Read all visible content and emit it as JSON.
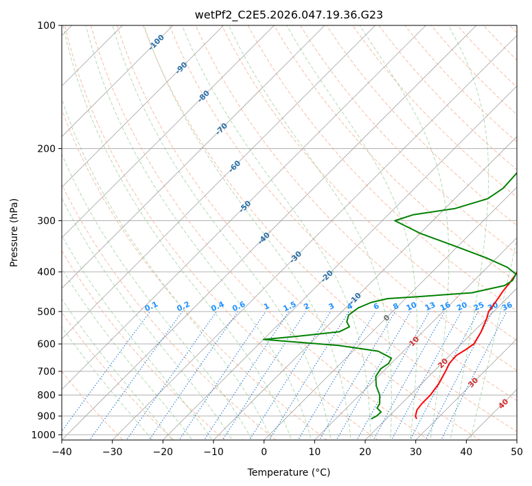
{
  "chart_data": {
    "type": "line",
    "title": "wetPf2_C2E5.2026.047.19.36.G23",
    "xlabel": "Temperature (°C)",
    "ylabel": "Pressure (hPa)",
    "xlim": [
      -40,
      50
    ],
    "ylim": [
      1030,
      100
    ],
    "x_ticks": [
      "−40",
      "−30",
      "−20",
      "−10",
      "0",
      "10",
      "20",
      "30",
      "40",
      "50"
    ],
    "x_tick_values": [
      -40,
      -30,
      -20,
      -10,
      0,
      10,
      20,
      30,
      40,
      50
    ],
    "y_ticks": [
      "100",
      "200",
      "300",
      "400",
      "500",
      "600",
      "700",
      "800",
      "900",
      "1000"
    ],
    "y_tick_values": [
      100,
      200,
      300,
      400,
      500,
      600,
      700,
      800,
      900,
      1000
    ],
    "series": [
      {
        "name": "Temperature",
        "color": "#ff0000",
        "points": [
          [
            26.0,
            915
          ],
          [
            25.2,
            900
          ],
          [
            24.3,
            870
          ],
          [
            24.0,
            840
          ],
          [
            24.0,
            800
          ],
          [
            23.4,
            750
          ],
          [
            22.3,
            700
          ],
          [
            21.5,
            670
          ],
          [
            21.3,
            640
          ],
          [
            22.0,
            620
          ],
          [
            22.5,
            600
          ],
          [
            21.5,
            560
          ],
          [
            20.0,
            520
          ],
          [
            19.0,
            500
          ],
          [
            18.4,
            470
          ],
          [
            17.8,
            445
          ],
          [
            17.5,
            425
          ],
          [
            17.0,
            405
          ],
          [
            16.0,
            380
          ],
          [
            14.5,
            340
          ],
          [
            13.0,
            310
          ],
          [
            11.0,
            290
          ],
          [
            8.0,
            265
          ],
          [
            5.5,
            245
          ],
          [
            4.2,
            230
          ],
          [
            2.6,
            215
          ],
          [
            0.8,
            200
          ],
          [
            -1.5,
            185
          ],
          [
            -3.5,
            170
          ],
          [
            -5.0,
            160
          ],
          [
            -6.7,
            148
          ],
          [
            -7.8,
            141
          ],
          [
            -9.0,
            135
          ],
          [
            -10.0,
            130
          ],
          [
            -10.5,
            126
          ],
          [
            -11.5,
            122
          ],
          [
            -12.5,
            118
          ],
          [
            -13.0,
            115
          ],
          [
            -14.0,
            111
          ],
          [
            -15.0,
            107
          ],
          [
            -16.0,
            103
          ],
          [
            -16.8,
            100
          ]
        ]
      },
      {
        "name": "Dewpoint",
        "color": "#008000",
        "points": [
          [
            17.0,
            915
          ],
          [
            17.5,
            900
          ],
          [
            17.6,
            880
          ],
          [
            16.0,
            860
          ],
          [
            15.7,
            840
          ],
          [
            14.0,
            800
          ],
          [
            11.5,
            760
          ],
          [
            9.5,
            720
          ],
          [
            9.0,
            690
          ],
          [
            9.5,
            670
          ],
          [
            9.0,
            650
          ],
          [
            5.0,
            625
          ],
          [
            -4.0,
            605
          ],
          [
            -12.0,
            595
          ],
          [
            -20.0,
            585
          ],
          [
            -14.0,
            575
          ],
          [
            -6.5,
            560
          ],
          [
            -5.5,
            545
          ],
          [
            -7.0,
            530
          ],
          [
            -8.0,
            510
          ],
          [
            -7.5,
            490
          ],
          [
            -6.0,
            475
          ],
          [
            -3.5,
            465
          ],
          [
            2.0,
            460
          ],
          [
            12.0,
            450
          ],
          [
            17.0,
            432
          ],
          [
            17.6,
            420
          ],
          [
            17.0,
            405
          ],
          [
            14.0,
            390
          ],
          [
            8.0,
            370
          ],
          [
            -1.0,
            345
          ],
          [
            -10.0,
            322
          ],
          [
            -17.5,
            300
          ],
          [
            -15.0,
            290
          ],
          [
            -8.0,
            280
          ],
          [
            -3.5,
            265
          ],
          [
            -2.5,
            250
          ],
          [
            -2.8,
            230
          ],
          [
            -3.5,
            212
          ],
          [
            -5.5,
            200
          ],
          [
            -5.5,
            185
          ],
          [
            -5.8,
            172
          ],
          [
            -6.5,
            160
          ],
          [
            -7.0,
            150
          ],
          [
            -7.3,
            140
          ],
          [
            -7.5,
            132
          ],
          [
            -7.0,
            124
          ],
          [
            -6.3,
            118
          ],
          [
            -5.5,
            112
          ],
          [
            -4.8,
            106
          ],
          [
            -4.5,
            100
          ]
        ]
      }
    ],
    "dry_adiabat_labels": [
      "-100",
      "-90",
      "-80",
      "-70",
      "-60",
      "-50",
      "-40",
      "-30",
      "-20",
      "-10"
    ],
    "dry_adiabat_label_pressures": [
      110,
      127,
      149,
      179,
      221,
      277,
      331,
      368,
      410,
      465
    ],
    "moist_adiabat_labels": [
      "0",
      "10",
      "20",
      "30",
      "40"
    ],
    "moist_adiabat_label_pressures": [
      525,
      630,
      700,
      780,
      855
    ],
    "mixing_ratio_labels": [
      "0.1",
      "0.2",
      "0.4",
      "0.6",
      "1",
      "1.5",
      "2",
      "3",
      "4",
      "6",
      "8",
      "10",
      "13",
      "16",
      "20",
      "25",
      "30",
      "36"
    ],
    "mixing_ratio_label_pressure": 492
  }
}
